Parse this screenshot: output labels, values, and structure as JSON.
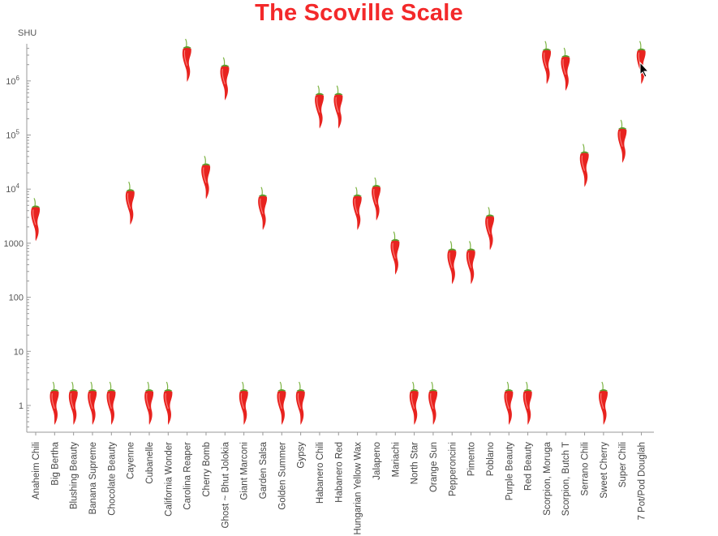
{
  "chart_data": {
    "type": "scatter",
    "title": "The Scoville Scale",
    "ylabel": "SHU",
    "xlabel": "",
    "yscale": "log",
    "ylim": [
      0.3,
      5000000
    ],
    "grid": false,
    "marker": "chili-pepper-icon",
    "marker_color": "#e8231f",
    "title_color": "#f3292a",
    "y_ticks": [
      {
        "value": 1,
        "label": "1"
      },
      {
        "value": 10,
        "label": "10"
      },
      {
        "value": 100,
        "label": "100"
      },
      {
        "value": 1000,
        "label": "1000"
      },
      {
        "value": 10000,
        "label": "10",
        "exp": "4"
      },
      {
        "value": 100000,
        "label": "10",
        "exp": "5"
      },
      {
        "value": 1000000,
        "label": "10",
        "exp": "6"
      }
    ],
    "categories": [
      "Anaheim Chili",
      "Big Bertha",
      "Blushing Beauty",
      "Banana Supreme",
      "Chocolate Beauty",
      "Cayenne",
      "Cubanelle",
      "California Wonder",
      "Carolina Reaper",
      "Cherry Bomb",
      "Ghost ~ Bhut Jolokia",
      "Giant Marconi",
      "Garden Salsa",
      "Golden Summer",
      "Gypsy",
      "Habanero Chili",
      "Habanero Red",
      "Hungarian Yellow Wax",
      "Jalapeno",
      "Mariachi",
      "North Star",
      "Orange Sun",
      "Pepperoncini",
      "Pimento",
      "Poblano",
      "Purple Beauty",
      "Red Beauty",
      "Scorpion, Moruga",
      "Scorpion, Butch T",
      "Serrano Chili",
      "Sweet Cherry",
      "Super Chili",
      "7 Pot/Pod Douglah"
    ],
    "values": [
      2500,
      1,
      1,
      1,
      1,
      5000,
      1,
      1,
      2200000,
      15000,
      1000000,
      1,
      4000,
      1,
      1,
      300000,
      300000,
      4000,
      6000,
      600,
      1,
      1,
      400,
      400,
      1700,
      1,
      1,
      2000000,
      1500000,
      25000,
      1,
      70000,
      2000000
    ]
  }
}
